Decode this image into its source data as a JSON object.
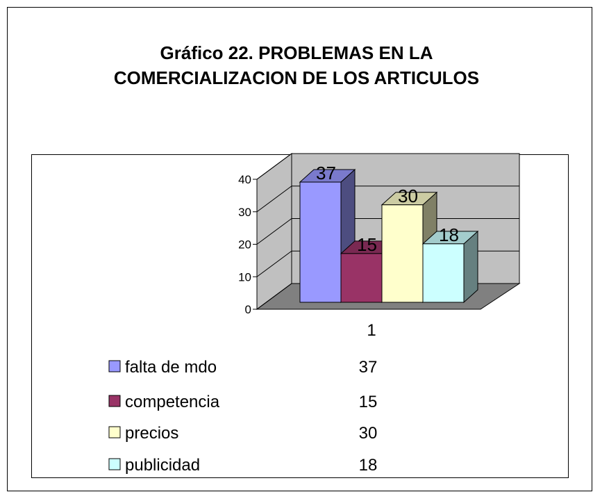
{
  "chart_data": {
    "type": "bar3d",
    "title": "Gráfico 22. PROBLEMAS EN LA COMERCIALIZACION DE LOS ARTICULOS",
    "categories": [
      "1"
    ],
    "series": [
      {
        "name": "falta de mdo",
        "color": "#9999ff",
        "values": [
          37
        ]
      },
      {
        "name": "competencia",
        "color": "#993366",
        "values": [
          15
        ]
      },
      {
        "name": "precios",
        "color": "#ffffcc",
        "values": [
          30
        ]
      },
      {
        "name": "publicidad",
        "color": "#ccffff",
        "values": [
          18
        ]
      }
    ],
    "ylim": [
      0,
      40
    ],
    "yticks": [
      0,
      10,
      20,
      30,
      40
    ],
    "grid": true
  }
}
